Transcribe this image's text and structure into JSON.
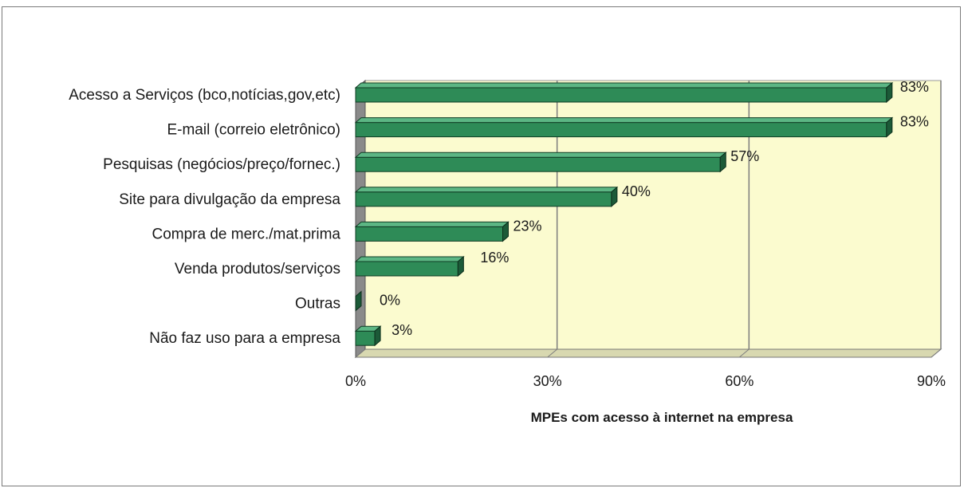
{
  "chart_data": {
    "type": "bar",
    "orientation": "horizontal",
    "style": "3d",
    "categories": [
      "Acesso a Serviços (bco,notícias,gov,etc)",
      "E-mail (correio eletrônico)",
      "Pesquisas  (negócios/preço/fornec.)",
      "Site para divulgação da empresa",
      "Compra de merc./mat.prima",
      "Venda produtos/serviços",
      "Outras",
      "Não faz uso para a empresa"
    ],
    "values": [
      83,
      83,
      57,
      40,
      23,
      16,
      0,
      3
    ],
    "value_labels": [
      "83%",
      "83%",
      "57%",
      "40%",
      "23%",
      "16%",
      "0%",
      "3%"
    ],
    "xlim": [
      0,
      90
    ],
    "xticks": [
      0,
      30,
      60,
      90
    ],
    "xtick_labels": [
      "0%",
      "30%",
      "60%",
      "90%"
    ],
    "xlabel": "MPEs com acesso à internet na empresa",
    "ylabel": "",
    "title": "",
    "grid": "vertical",
    "legend": "none",
    "colors": {
      "bar": "#2e8b57",
      "bar_top": "#5cb684",
      "bar_side": "#1c5a38",
      "plot_background": "#fbfbcf",
      "plot_wall_left": "#8a8a8a",
      "plot_floor": "#d8d8b0",
      "gridline": "#7d7d7d"
    }
  }
}
